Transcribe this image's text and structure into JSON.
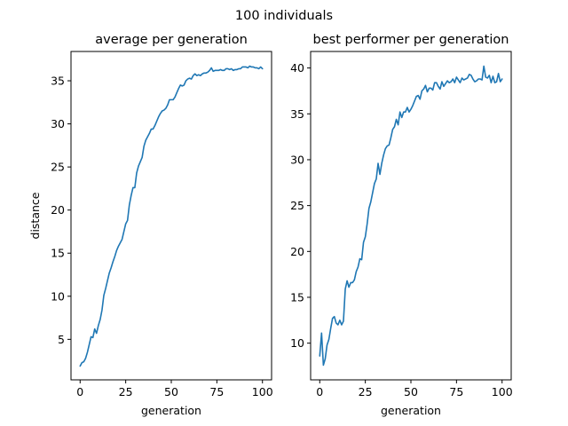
{
  "suptitle": "100 individuals",
  "colors": {
    "line": "#1f77b4"
  },
  "chart_data": [
    {
      "type": "line",
      "title": "average per generation",
      "xlabel": "generation",
      "ylabel": "distance",
      "xlim": [
        -5,
        105
      ],
      "ylim": [
        0.3,
        38.4
      ],
      "xticks": [
        0,
        25,
        50,
        75,
        100
      ],
      "yticks": [
        5,
        10,
        15,
        20,
        25,
        30,
        35
      ],
      "grid": false,
      "series": [
        {
          "x": [
            0,
            1,
            2,
            3,
            4,
            5,
            6,
            7,
            8,
            9,
            10,
            11,
            12,
            13,
            14,
            15,
            16,
            17,
            18,
            19,
            20,
            21,
            22,
            23,
            24,
            25,
            26,
            27,
            28,
            29,
            30,
            31,
            32,
            33,
            34,
            35,
            36,
            37,
            38,
            39,
            40,
            41,
            42,
            43,
            44,
            45,
            46,
            47,
            48,
            49,
            50,
            51,
            52,
            53,
            54,
            55,
            56,
            57,
            58,
            59,
            60,
            61,
            62,
            63,
            64,
            65,
            66,
            67,
            68,
            69,
            70,
            71,
            72,
            73,
            74,
            75,
            76,
            77,
            78,
            79,
            80,
            81,
            82,
            83,
            84,
            85,
            86,
            87,
            88,
            89,
            90,
            91,
            92,
            93,
            94,
            95,
            96,
            97,
            98,
            99,
            100
          ],
          "y": [
            1.9,
            2.3,
            2.4,
            2.8,
            3.5,
            4.4,
            5.3,
            5.2,
            6.2,
            5.7,
            6.6,
            7.3,
            8.4,
            10.1,
            10.9,
            11.8,
            12.7,
            13.3,
            14.0,
            14.6,
            15.3,
            15.8,
            16.2,
            16.6,
            17.5,
            18.4,
            18.8,
            20.6,
            21.7,
            22.6,
            22.6,
            24.3,
            25.1,
            25.6,
            26.1,
            27.4,
            28.1,
            28.5,
            28.9,
            29.4,
            29.4,
            29.8,
            30.3,
            30.8,
            31.2,
            31.5,
            31.6,
            31.8,
            32.2,
            32.8,
            32.8,
            32.8,
            33.1,
            33.6,
            34.1,
            34.5,
            34.4,
            34.5,
            35.0,
            35.2,
            35.3,
            35.2,
            35.6,
            35.8,
            35.6,
            35.7,
            35.6,
            35.8,
            35.9,
            35.9,
            36.0,
            36.2,
            36.5,
            36.1,
            36.2,
            36.2,
            36.2,
            36.3,
            36.2,
            36.2,
            36.4,
            36.4,
            36.3,
            36.4,
            36.2,
            36.3,
            36.3,
            36.4,
            36.4,
            36.6,
            36.6,
            36.6,
            36.5,
            36.7,
            36.6,
            36.6,
            36.5,
            36.5,
            36.4,
            36.6,
            36.4
          ]
        }
      ]
    },
    {
      "type": "line",
      "title": "best performer per generation",
      "xlabel": "generation",
      "ylabel": "",
      "xlim": [
        -5,
        105
      ],
      "ylim": [
        6.0,
        41.8
      ],
      "xticks": [
        0,
        25,
        50,
        75,
        100
      ],
      "yticks": [
        10,
        15,
        20,
        25,
        30,
        35,
        40
      ],
      "grid": false,
      "series": [
        {
          "x": [
            0,
            1,
            2,
            3,
            4,
            5,
            6,
            7,
            8,
            9,
            10,
            11,
            12,
            13,
            14,
            15,
            16,
            17,
            18,
            19,
            20,
            21,
            22,
            23,
            24,
            25,
            26,
            27,
            28,
            29,
            30,
            31,
            32,
            33,
            34,
            35,
            36,
            37,
            38,
            39,
            40,
            41,
            42,
            43,
            44,
            45,
            46,
            47,
            48,
            49,
            50,
            51,
            52,
            53,
            54,
            55,
            56,
            57,
            58,
            59,
            60,
            61,
            62,
            63,
            64,
            65,
            66,
            67,
            68,
            69,
            70,
            71,
            72,
            73,
            74,
            75,
            76,
            77,
            78,
            79,
            80,
            81,
            82,
            83,
            84,
            85,
            86,
            87,
            88,
            89,
            90,
            91,
            92,
            93,
            94,
            95,
            96,
            97,
            98,
            99,
            100
          ],
          "y": [
            8.6,
            11.1,
            7.6,
            8.3,
            9.8,
            10.4,
            11.6,
            12.7,
            12.9,
            12.2,
            12.0,
            12.5,
            12.0,
            12.4,
            15.9,
            16.8,
            16.1,
            16.6,
            16.6,
            16.9,
            17.8,
            18.3,
            19.2,
            19.1,
            21.0,
            21.6,
            23.0,
            24.7,
            25.4,
            26.4,
            27.4,
            27.9,
            29.6,
            28.4,
            29.6,
            30.5,
            31.2,
            31.5,
            31.6,
            32.4,
            33.3,
            33.6,
            34.4,
            33.8,
            35.2,
            34.6,
            35.2,
            35.2,
            35.7,
            35.2,
            35.5,
            35.9,
            36.4,
            36.9,
            37.0,
            36.6,
            37.5,
            37.7,
            38.1,
            37.4,
            37.8,
            37.8,
            37.6,
            38.4,
            38.4,
            38.0,
            37.7,
            38.5,
            38.0,
            38.3,
            38.6,
            38.4,
            38.5,
            38.8,
            38.4,
            39.0,
            38.7,
            38.4,
            38.9,
            38.7,
            38.8,
            38.9,
            39.3,
            39.2,
            38.8,
            38.5,
            38.6,
            38.8,
            38.8,
            38.7,
            40.2,
            39.0,
            38.9,
            39.2,
            38.4,
            39.1,
            38.4,
            38.5,
            39.4,
            38.5,
            38.8
          ]
        }
      ]
    }
  ]
}
